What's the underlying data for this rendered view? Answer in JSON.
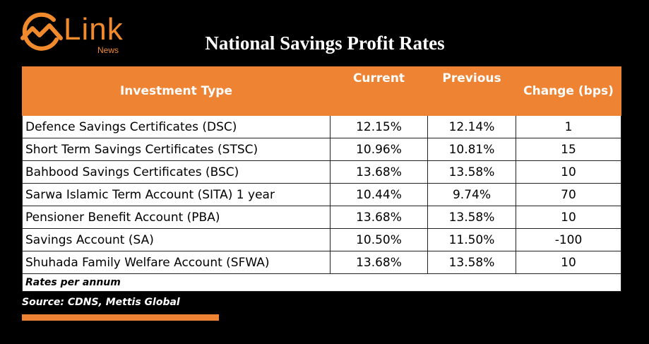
{
  "brand": {
    "name": "Link",
    "sub": "News",
    "color": "#f08a2c"
  },
  "chart_data": {
    "type": "table",
    "title": "National Savings Profit Rates",
    "columns": [
      "Investment Type",
      "Current",
      "Previous",
      "Change (bps)"
    ],
    "rows": [
      [
        "Defence Savings Certificates (DSC)",
        "12.15%",
        "12.14%",
        "1"
      ],
      [
        "Short Term Savings Certificates (STSC)",
        "10.96%",
        "10.81%",
        "15"
      ],
      [
        "Bahbood Savings Certificates (BSC)",
        "13.68%",
        "13.58%",
        "10"
      ],
      [
        "Sarwa Islamic Term Account (SITA) 1 year",
        "10.44%",
        "9.74%",
        "70"
      ],
      [
        "Pensioner Benefit Account (PBA)",
        "13.68%",
        "13.58%",
        "10"
      ],
      [
        "Savings Account (SA)",
        "10.50%",
        "11.50%",
        "-100"
      ],
      [
        "Shuhada Family Welfare Account (SFWA)",
        "13.68%",
        "13.58%",
        "10"
      ]
    ],
    "note": "Rates per annum",
    "header_color": "#ee8433"
  },
  "source": "Source: CDNS, Mettis Global"
}
